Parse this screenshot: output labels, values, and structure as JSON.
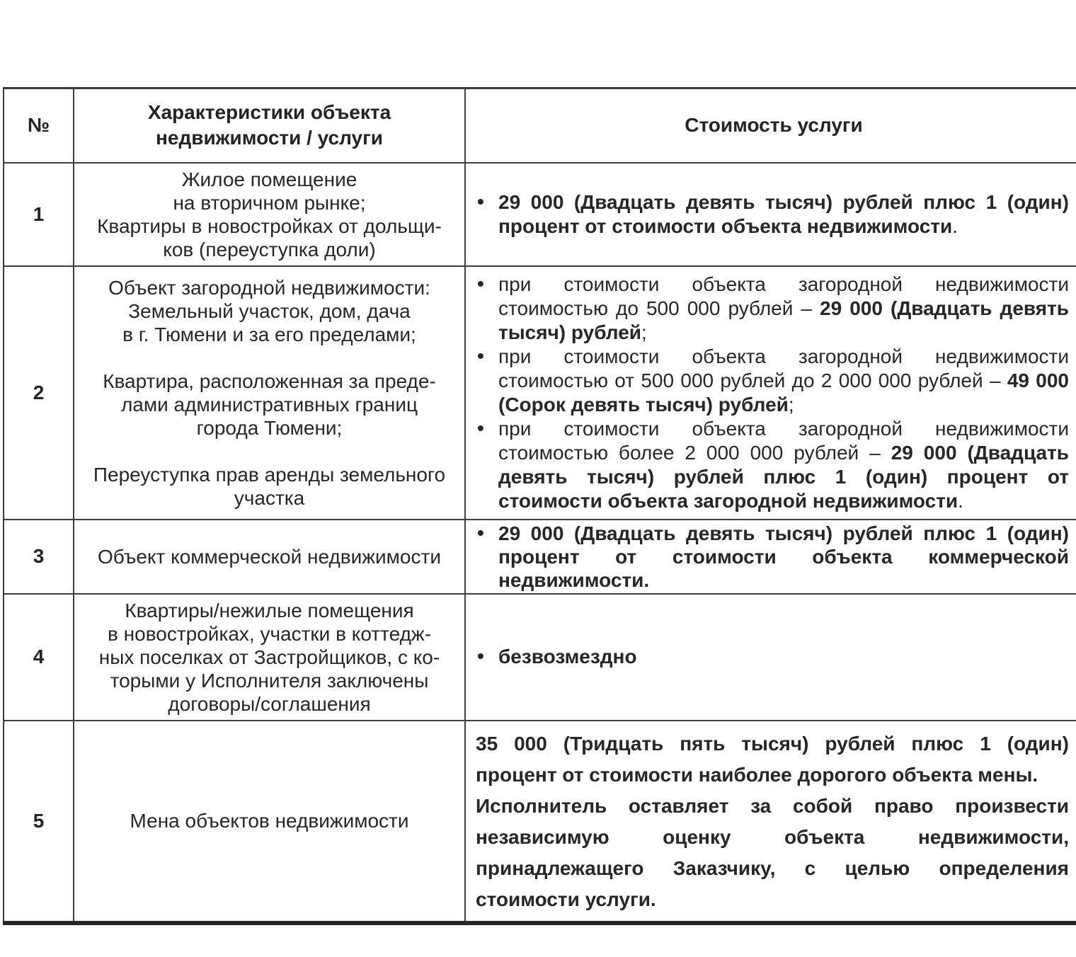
{
  "document": {
    "table": {
      "headers": {
        "num": "№",
        "characteristics": "Характеристики объекта\nнедвижимости / услуги",
        "cost": "Стоимость услуги"
      },
      "rows": [
        {
          "num": "1",
          "characteristics": "Жилое помещение\nна вторичном рынке;\nКвартиры в новостройках от дольщи-\nков (переуступка доли)",
          "cost_items": [
            {
              "bullet": true,
              "segments": [
                {
                  "t": "29 000 (Двадцать девять тысяч) рублей плюс 1 (один) процент от стоимости объекта недвижимости",
                  "b": true
                },
                {
                  "t": ".",
                  "b": false
                }
              ]
            }
          ]
        },
        {
          "num": "2",
          "characteristics": "Объект загородной недвижимости:\nЗемельный участок, дом, дача\nв г. Тюмени и за его пределами;\n\nКвартира, расположенная за преде-\nлами административных границ\nгорода Тюмени;\n\nПереуступка прав аренды земельного\nучастка",
          "cost_items": [
            {
              "bullet": true,
              "segments": [
                {
                  "t": "при стоимости объекта загородной недвижимости стоимостью до 500 000 рублей – ",
                  "b": false
                },
                {
                  "t": "29 000 (Двадцать девять тысяч) рублей",
                  "b": true
                },
                {
                  "t": ";",
                  "b": false
                }
              ]
            },
            {
              "bullet": true,
              "segments": [
                {
                  "t": "при стоимости объекта загородной недвижимости стоимостью от 500 000 рублей до 2 000 000 рублей – ",
                  "b": false
                },
                {
                  "t": "49 000 (Сорок девять тысяч) рублей",
                  "b": true
                },
                {
                  "t": ";",
                  "b": false
                }
              ]
            },
            {
              "bullet": true,
              "segments": [
                {
                  "t": "при стоимости объекта загородной недвижимости стоимостью более 2 000 000 рублей – ",
                  "b": false
                },
                {
                  "t": "29 000 (Двадцать девять тысяч) рублей плюс 1 (один) процент от стоимости объекта загородной недвижимости",
                  "b": true
                },
                {
                  "t": ".",
                  "b": false
                }
              ]
            }
          ]
        },
        {
          "num": "3",
          "characteristics": "Объект коммерческой недвижимости",
          "cost_items": [
            {
              "bullet": true,
              "segments": [
                {
                  "t": "29 000 (Двадцать девять тысяч) рублей плюс 1 (один) процент от стоимости объекта коммерческой недвижимости.",
                  "b": true
                }
              ]
            }
          ]
        },
        {
          "num": "4",
          "characteristics": "Квартиры/нежилые помещения\nв новостройках, участки в коттедж-\nных поселках от Застройщиков, с ко-\nторыми у Исполнителя заключены\nдоговоры/соглашения",
          "cost_items": [
            {
              "bullet": true,
              "segments": [
                {
                  "t": "безвозмездно",
                  "b": true
                }
              ]
            }
          ]
        },
        {
          "num": "5",
          "characteristics": "Мена объектов недвижимости",
          "cost_items": [
            {
              "bullet": false,
              "segments": [
                {
                  "t": "35 000 (Тридцать пять тысяч) рублей плюс 1 (один) процент от стоимости наиболее дорогого объекта мены.",
                  "b": true
                }
              ]
            },
            {
              "bullet": false,
              "segments": [
                {
                  "t": "Исполнитель оставляет за собой право произвести независимую оценку объекта недвижимости, принадлежащего Заказчику, с целью определения стоимости услуги.",
                  "b": true
                }
              ]
            }
          ]
        }
      ]
    }
  }
}
